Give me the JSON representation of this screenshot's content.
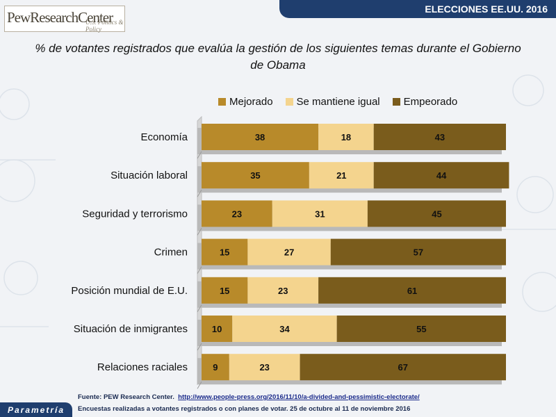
{
  "header": {
    "election_label": "ELECCIONES EE.UU. 2016"
  },
  "logo": {
    "name": "PewResearchCenter",
    "subtitle": "U.S. Politics & Policy"
  },
  "watermark": "Parametría",
  "footer_logo": "Parametría",
  "colors": {
    "mejorado": "#b88a2a",
    "se_mantiene_igual": "#f4d48e",
    "empeorado": "#7a5c1c",
    "header_band": "#1f3e6e"
  },
  "chart_data": {
    "type": "bar",
    "orientation": "horizontal-stacked",
    "title": "% de votantes registrados que evalúa la gestión de los siguientes temas durante el Gobierno de Obama",
    "categories": [
      "Economía",
      "Situación laboral",
      "Seguridad y terrorismo",
      "Crimen",
      "Posición mundial de E.U.",
      "Situación de inmigrantes",
      "Relaciones raciales"
    ],
    "series": [
      {
        "name": "Mejorado",
        "color": "#b88a2a",
        "values": [
          38,
          35,
          23,
          15,
          15,
          10,
          9
        ]
      },
      {
        "name": "Se mantiene igual",
        "color": "#f4d48e",
        "values": [
          18,
          21,
          31,
          27,
          23,
          34,
          23
        ]
      },
      {
        "name": "Empeorado",
        "color": "#7a5c1c",
        "values": [
          43,
          44,
          45,
          57,
          61,
          55,
          67
        ]
      }
    ],
    "xlim": [
      0,
      99
    ],
    "legend_position": "top",
    "grid": false
  },
  "footer": {
    "source_prefix": "Fuente: PEW Research Center.",
    "source_url": "http://www.people-press.org/2016/11/10/a-divided-and-pessimistic-electorate/",
    "note": "Encuestas realizadas a votantes registrados o con planes de votar. 25 de octubre al 11 de noviembre 2016"
  }
}
